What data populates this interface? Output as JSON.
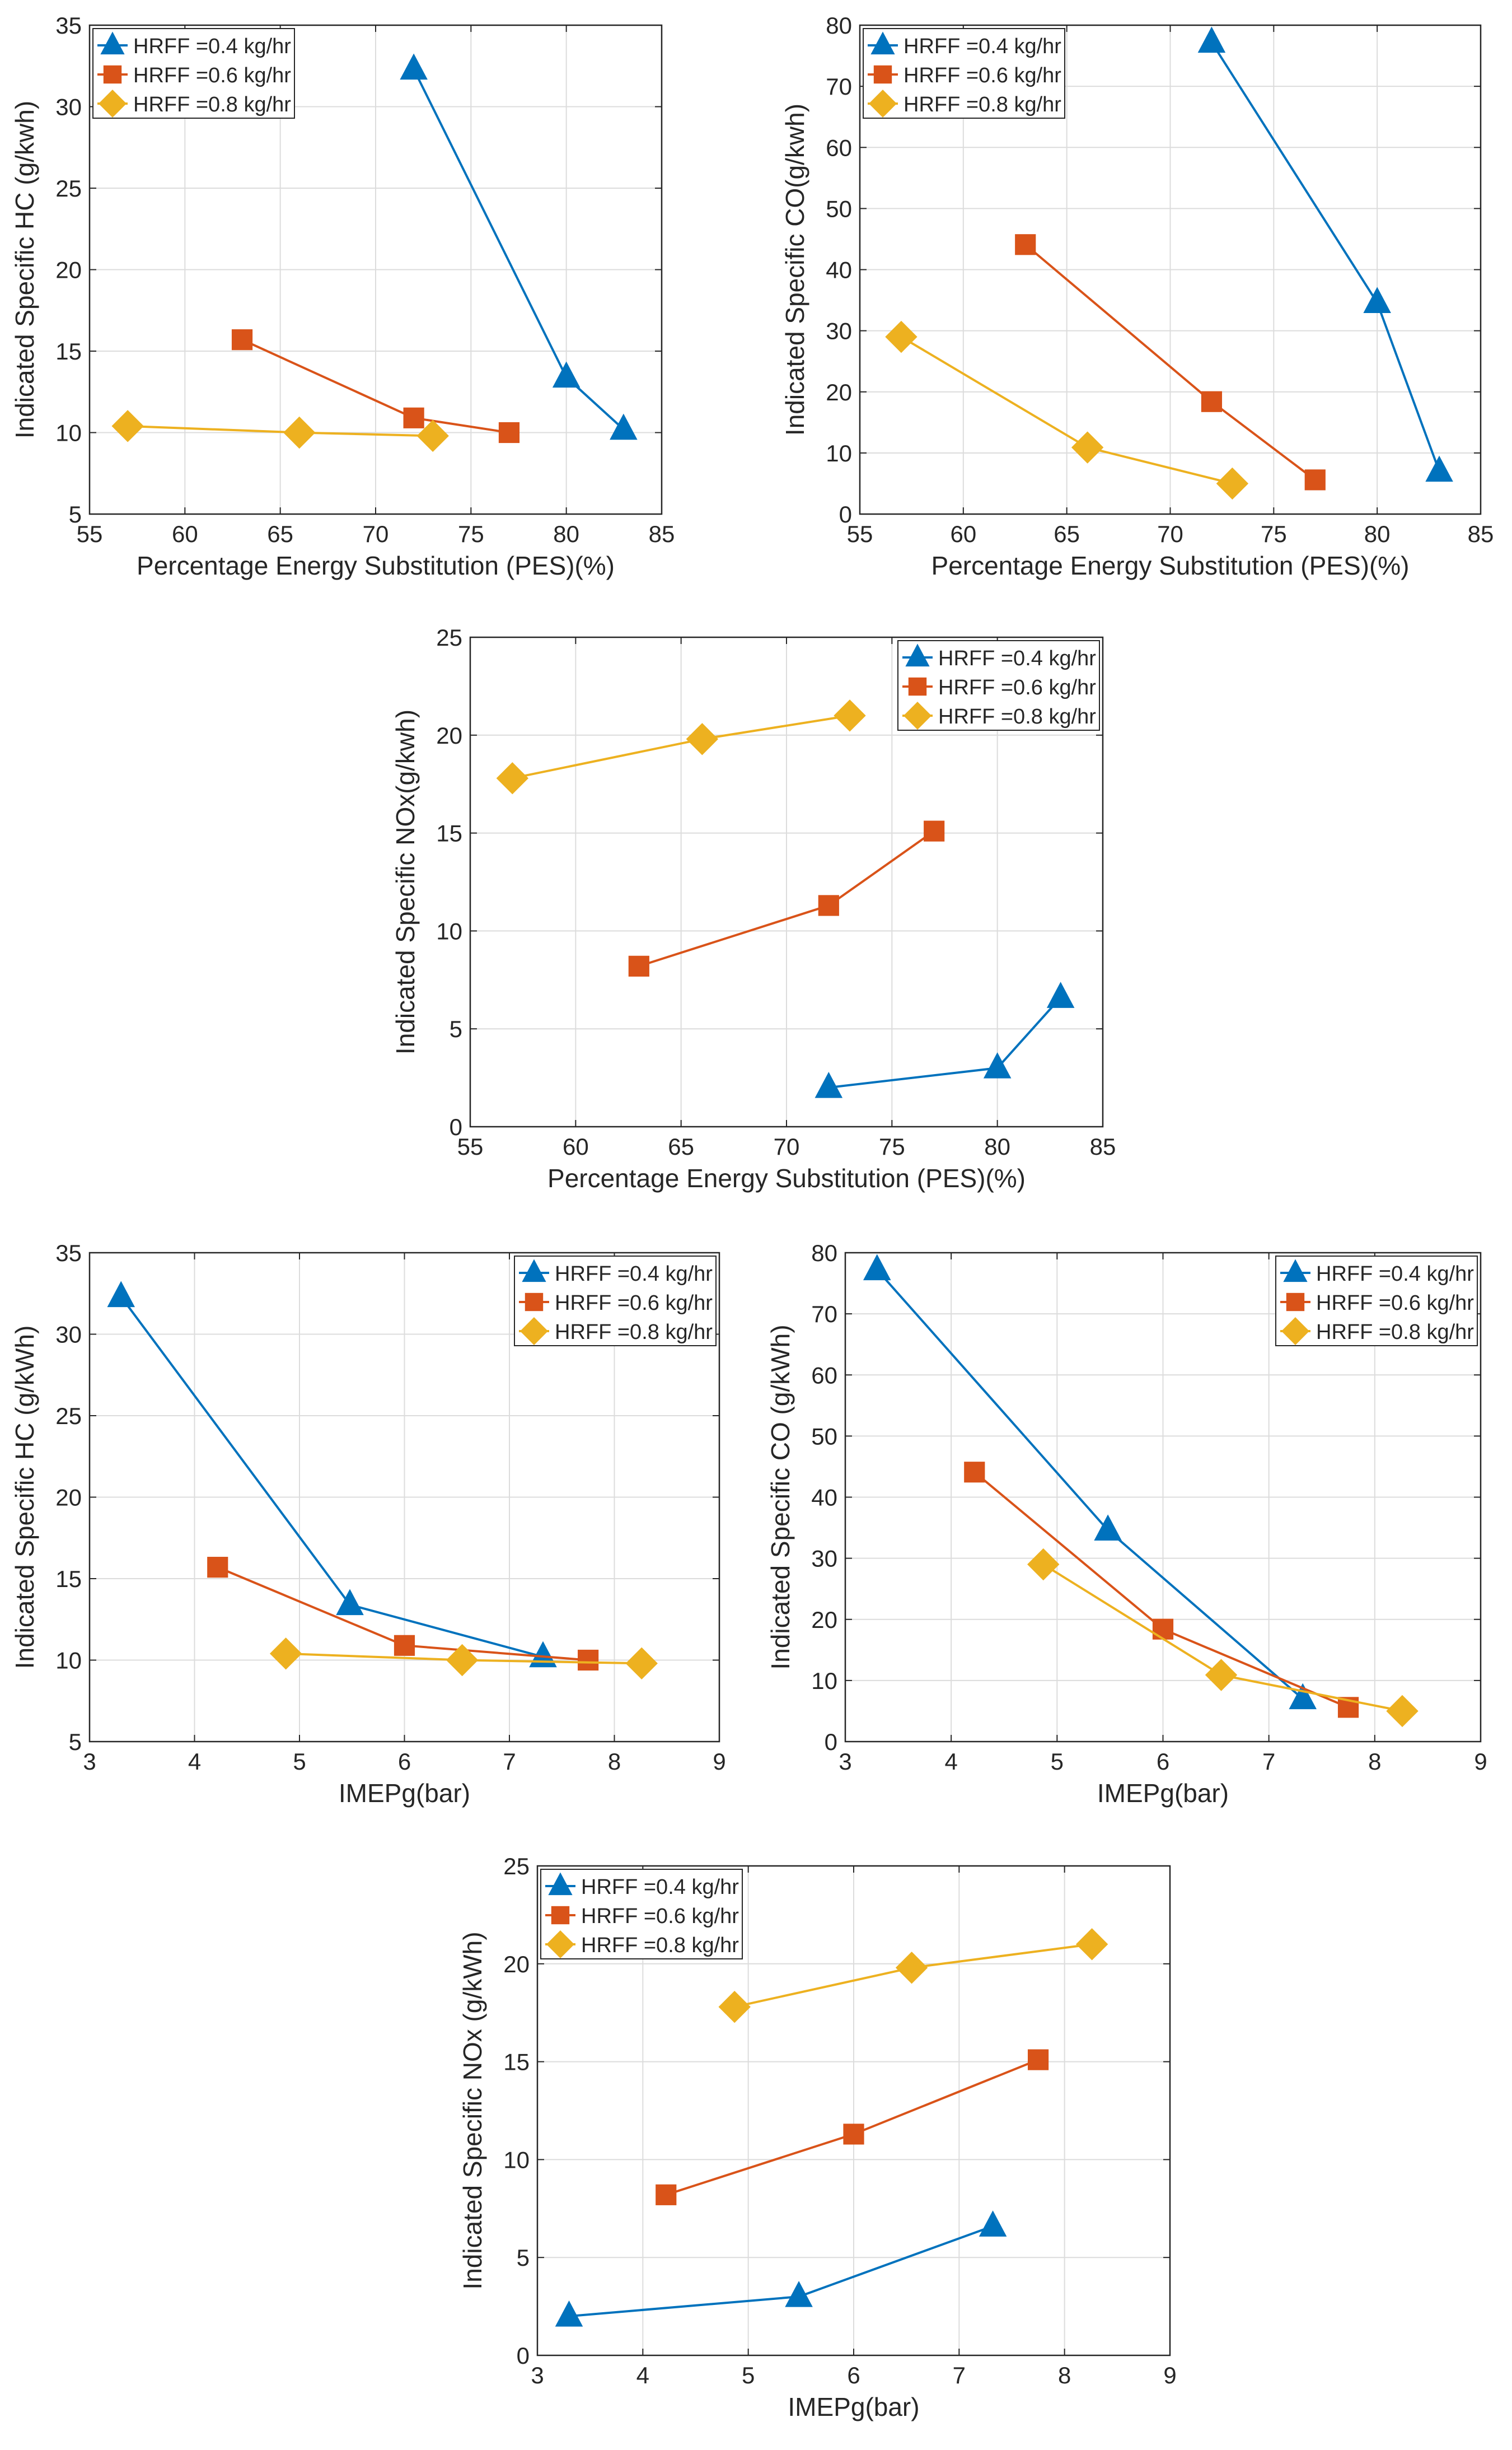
{
  "legend_labels": [
    "HRFF =0.4 kg/hr",
    "HRFF =0.6 kg/hr",
    "HRFF =0.8 kg/hr"
  ],
  "series_styles": [
    {
      "name": "HRFF =0.4 kg/hr",
      "color": "#0072BD",
      "marker": "triangle"
    },
    {
      "name": "HRFF =0.6 kg/hr",
      "color": "#D95319",
      "marker": "square"
    },
    {
      "name": "HRFF =0.8 kg/hr",
      "color": "#EDB120",
      "marker": "diamond"
    }
  ],
  "chart_data": [
    {
      "type": "line",
      "id": "hc-vs-pes",
      "title": "",
      "xlabel": "Percentage Energy Substitution (PES)(%)",
      "ylabel": "Indicated Specific HC (g/kwh)",
      "xlim": [
        55,
        85
      ],
      "ylim": [
        5,
        35
      ],
      "xticks": [
        55,
        60,
        65,
        70,
        75,
        80,
        85
      ],
      "yticks": [
        5,
        10,
        15,
        20,
        25,
        30,
        35
      ],
      "grid": true,
      "legend_position": "top-left",
      "series": [
        {
          "name": "HRFF =0.4 kg/hr",
          "x": [
            72,
            80,
            83
          ],
          "y": [
            32.3,
            13.4,
            10.2
          ]
        },
        {
          "name": "HRFF =0.6 kg/hr",
          "x": [
            63,
            72,
            77
          ],
          "y": [
            15.7,
            10.9,
            10.0
          ]
        },
        {
          "name": "HRFF =0.8 kg/hr",
          "x": [
            57,
            66,
            73
          ],
          "y": [
            10.4,
            10.0,
            9.8
          ]
        }
      ]
    },
    {
      "type": "line",
      "id": "co-vs-pes",
      "title": "",
      "xlabel": "Percentage Energy Substitution (PES)(%)",
      "ylabel": "Indicated Specific CO(g/kwh)",
      "xlim": [
        55,
        85
      ],
      "ylim": [
        0,
        80
      ],
      "xticks": [
        55,
        60,
        65,
        70,
        75,
        80,
        85
      ],
      "yticks": [
        0,
        10,
        20,
        30,
        40,
        50,
        60,
        70,
        80
      ],
      "grid": true,
      "legend_position": "top-left",
      "series": [
        {
          "name": "HRFF =0.4 kg/hr",
          "x": [
            72,
            80,
            83
          ],
          "y": [
            77.2,
            34.6,
            7.0
          ]
        },
        {
          "name": "HRFF =0.6 kg/hr",
          "x": [
            63,
            72,
            77
          ],
          "y": [
            44.1,
            18.4,
            5.6
          ]
        },
        {
          "name": "HRFF =0.8 kg/hr",
          "x": [
            57,
            66,
            73
          ],
          "y": [
            29.0,
            10.9,
            5.0
          ]
        }
      ]
    },
    {
      "type": "line",
      "id": "nox-vs-pes",
      "title": "",
      "xlabel": "Percentage Energy Substitution (PES)(%)",
      "ylabel": "Indicated Specific NOx(g/kwh)",
      "xlim": [
        55,
        85
      ],
      "ylim": [
        0,
        25
      ],
      "xticks": [
        55,
        60,
        65,
        70,
        75,
        80,
        85
      ],
      "yticks": [
        0,
        5,
        10,
        15,
        20,
        25
      ],
      "grid": true,
      "legend_position": "top-right",
      "series": [
        {
          "name": "HRFF =0.4 kg/hr",
          "x": [
            72,
            80,
            83
          ],
          "y": [
            2.0,
            3.0,
            6.6
          ]
        },
        {
          "name": "HRFF =0.6 kg/hr",
          "x": [
            63,
            72,
            77
          ],
          "y": [
            8.2,
            11.3,
            15.1
          ]
        },
        {
          "name": "HRFF =0.8 kg/hr",
          "x": [
            57,
            66,
            73
          ],
          "y": [
            17.8,
            19.8,
            21.0
          ]
        }
      ]
    },
    {
      "type": "line",
      "id": "hc-vs-imep",
      "title": "",
      "xlabel": "IMEPg(bar)",
      "ylabel": "Indicated Specific HC (g/kWh)",
      "xlim": [
        3,
        9
      ],
      "ylim": [
        5,
        35
      ],
      "xticks": [
        3,
        4,
        5,
        6,
        7,
        8,
        9
      ],
      "yticks": [
        5,
        10,
        15,
        20,
        25,
        30,
        35
      ],
      "grid": true,
      "legend_position": "top-right",
      "series": [
        {
          "name": "HRFF =0.4 kg/hr",
          "x": [
            3.3,
            5.48,
            7.32
          ],
          "y": [
            32.3,
            13.4,
            10.2
          ]
        },
        {
          "name": "HRFF =0.6 kg/hr",
          "x": [
            4.22,
            6.0,
            7.75
          ],
          "y": [
            15.7,
            10.9,
            10.0
          ]
        },
        {
          "name": "HRFF =0.8 kg/hr",
          "x": [
            4.87,
            6.55,
            8.26
          ],
          "y": [
            10.4,
            10.0,
            9.8
          ]
        }
      ]
    },
    {
      "type": "line",
      "id": "co-vs-imep",
      "title": "",
      "xlabel": "IMEPg(bar)",
      "ylabel": "Indicated Specific CO (g/kWh)",
      "xlim": [
        3,
        9
      ],
      "ylim": [
        0,
        80
      ],
      "xticks": [
        3,
        4,
        5,
        6,
        7,
        8,
        9
      ],
      "yticks": [
        0,
        10,
        20,
        30,
        40,
        50,
        60,
        70,
        80
      ],
      "grid": true,
      "legend_position": "top-right",
      "series": [
        {
          "name": "HRFF =0.4 kg/hr",
          "x": [
            3.3,
            5.48,
            7.32
          ],
          "y": [
            77.2,
            34.6,
            7.0
          ]
        },
        {
          "name": "HRFF =0.6 kg/hr",
          "x": [
            4.22,
            6.0,
            7.75
          ],
          "y": [
            44.1,
            18.4,
            5.6
          ]
        },
        {
          "name": "HRFF =0.8 kg/hr",
          "x": [
            4.87,
            6.55,
            8.26
          ],
          "y": [
            29.0,
            10.9,
            5.0
          ]
        }
      ]
    },
    {
      "type": "line",
      "id": "nox-vs-imep",
      "title": "",
      "xlabel": "IMEPg(bar)",
      "ylabel": "Indicated Specific NOx (g/kWh)",
      "xlim": [
        3,
        9
      ],
      "ylim": [
        0,
        25
      ],
      "xticks": [
        3,
        4,
        5,
        6,
        7,
        8,
        9
      ],
      "yticks": [
        0,
        5,
        10,
        15,
        20,
        25
      ],
      "grid": true,
      "legend_position": "top-left",
      "series": [
        {
          "name": "HRFF =0.4 kg/hr",
          "x": [
            3.3,
            5.48,
            7.32
          ],
          "y": [
            2.0,
            3.0,
            6.6
          ]
        },
        {
          "name": "HRFF =0.6 kg/hr",
          "x": [
            4.22,
            6.0,
            7.75
          ],
          "y": [
            8.2,
            11.3,
            15.1
          ]
        },
        {
          "name": "HRFF =0.8 kg/hr",
          "x": [
            4.87,
            6.55,
            8.26
          ],
          "y": [
            17.8,
            19.8,
            21.0
          ]
        }
      ]
    }
  ]
}
